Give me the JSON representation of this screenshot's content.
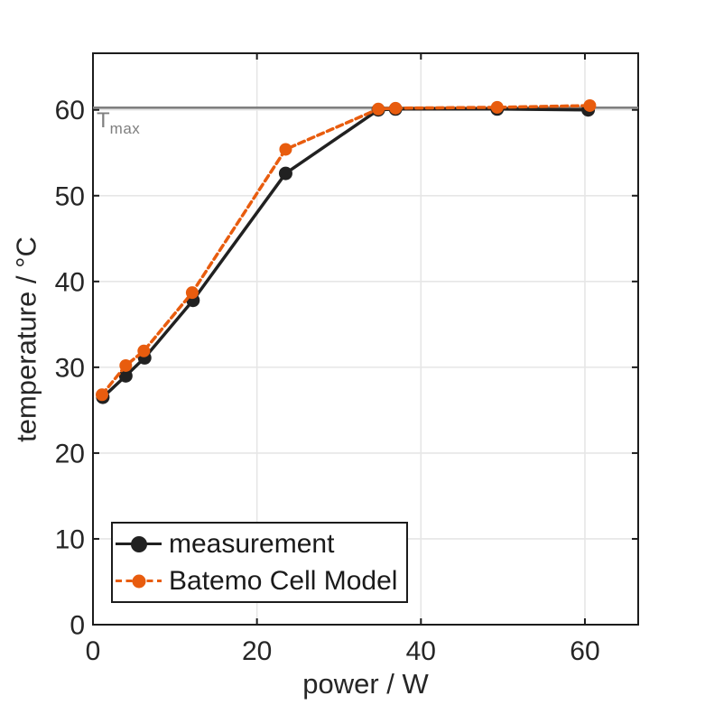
{
  "figure": {
    "background": "#ffffff",
    "axis_color": "#1c1c1c",
    "grid_color": "#e6e6e6",
    "tick_label_color": "#262626",
    "label_color": "#262626"
  },
  "chart_data": {
    "type": "line",
    "title": "",
    "xlabel": "power / W",
    "ylabel": "temperature / °C",
    "xlim": [
      0,
      66.5
    ],
    "ylim": [
      0,
      66.6
    ],
    "xticks": [
      0,
      20,
      40,
      60
    ],
    "yticks": [
      0,
      10,
      20,
      30,
      40,
      50,
      60
    ],
    "grid": true,
    "legend_position": "southwest-inside",
    "reference_line": {
      "y": 60.25,
      "color": "#7f7f7f",
      "label_main": "T",
      "label_sub": "max"
    },
    "series": [
      {
        "name": "measurement",
        "color": "#212121",
        "line_style": "solid",
        "marker": "circle",
        "x": [
          1.2,
          4.0,
          6.3,
          12.2,
          23.5,
          34.8,
          36.9,
          49.3,
          60.4
        ],
        "y": [
          26.5,
          29.0,
          31.1,
          37.8,
          52.6,
          60.0,
          60.1,
          60.1,
          60.0
        ]
      },
      {
        "name": "Batemo Cell Model",
        "color": "#e85c0e",
        "line_style": "dotted",
        "marker": "circle",
        "x": [
          1.1,
          4.0,
          6.2,
          12.1,
          23.5,
          34.8,
          36.9,
          49.3,
          60.6
        ],
        "y": [
          26.8,
          30.2,
          31.9,
          38.7,
          55.4,
          60.1,
          60.2,
          60.3,
          60.5
        ]
      }
    ]
  }
}
